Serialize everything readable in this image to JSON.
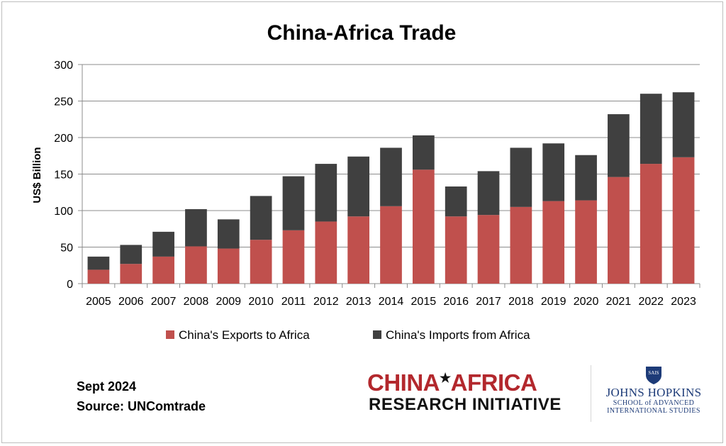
{
  "chart_data": {
    "type": "bar",
    "stacked": true,
    "title": "China-Africa Trade",
    "ylabel": "US$ Billion",
    "xlabel": "",
    "ylim": [
      0,
      300
    ],
    "yticks": [
      0,
      50,
      100,
      150,
      200,
      250,
      300
    ],
    "grid": true,
    "legend_position": "bottom",
    "categories": [
      "2005",
      "2006",
      "2007",
      "2008",
      "2009",
      "2010",
      "2011",
      "2012",
      "2013",
      "2014",
      "2015",
      "2016",
      "2017",
      "2018",
      "2019",
      "2020",
      "2021",
      "2022",
      "2023"
    ],
    "series": [
      {
        "name": "China's Exports to Africa",
        "color": "#c0504d",
        "values": [
          19,
          27,
          37,
          51,
          48,
          60,
          73,
          85,
          92,
          106,
          156,
          92,
          94,
          105,
          113,
          114,
          146,
          164,
          173
        ]
      },
      {
        "name": "China's Imports from Africa",
        "color": "#404040",
        "values": [
          18,
          26,
          34,
          51,
          40,
          60,
          74,
          79,
          82,
          80,
          47,
          41,
          60,
          81,
          79,
          62,
          86,
          96,
          89
        ]
      }
    ]
  },
  "footer": {
    "date": "Sept 2024",
    "source": "Source: UNComtrade"
  },
  "logos": {
    "cari_line1_a": "CHINA",
    "cari_line1_b": "AFRICA",
    "cari_line2": "RESEARCH INITIATIVE",
    "jhu_name": "JOHNS HOPKINS",
    "jhu_school_1": "SCHOOL of ADVANCED",
    "jhu_school_2": "INTERNATIONAL STUDIES",
    "jhu_shield_text": "SAIS"
  }
}
